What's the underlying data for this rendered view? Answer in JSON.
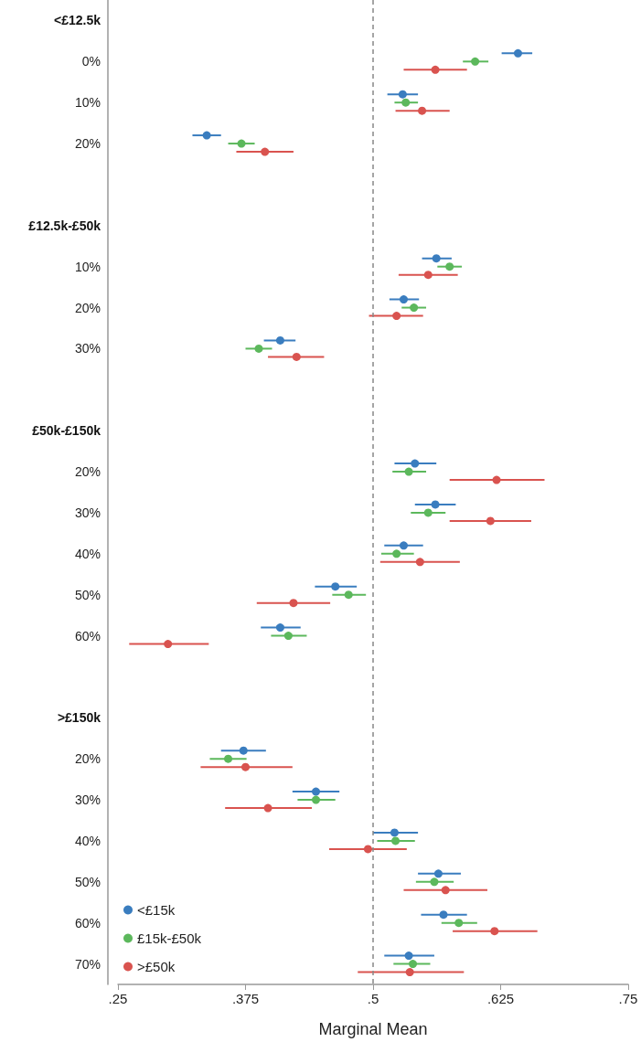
{
  "chart_data": {
    "type": "scatter",
    "orientation": "horizontal",
    "xlabel": "Marginal Mean",
    "categories": [
      "<£12.5k",
      "0%",
      "10%",
      "20%",
      null,
      "£12.5k-£50k",
      "10%",
      "20%",
      "30%",
      null,
      "£50k-£150k",
      "20%",
      "30%",
      "40%",
      "50%",
      "60%",
      null,
      ">£150k",
      "20%",
      "30%",
      "40%",
      "50%",
      "60%",
      "70%"
    ],
    "xlim": [
      0.25,
      0.75
    ],
    "xticks": [
      {
        "value": 0.25,
        "label": ".25"
      },
      {
        "value": 0.375,
        "label": ".375"
      },
      {
        "value": 0.5,
        "label": ".5"
      },
      {
        "value": 0.625,
        "label": ".625"
      },
      {
        "value": 0.75,
        "label": ".75"
      }
    ],
    "grid": false,
    "legend": "bottom left",
    "marker": "circle",
    "ref_lines": [
      {
        "axis": "x",
        "value": 0.5,
        "color": "#888888",
        "line_style": "dashed"
      }
    ],
    "series": [
      {
        "name": "<£15k",
        "color": "#3a7dbf",
        "values": [
          null,
          0.642,
          0.529,
          0.337,
          null,
          null,
          0.562,
          0.53,
          0.409,
          null,
          null,
          0.541,
          0.561,
          0.53,
          0.463,
          0.409,
          null,
          null,
          0.373,
          0.444,
          0.521,
          0.564,
          0.569,
          0.535
        ],
        "errors": [
          null,
          [
            0.626,
            0.656
          ],
          [
            0.514,
            0.544
          ],
          [
            0.323,
            0.351
          ],
          null,
          null,
          [
            0.548,
            0.577
          ],
          [
            0.516,
            0.545
          ],
          [
            0.393,
            0.424
          ],
          null,
          null,
          [
            0.521,
            0.562
          ],
          [
            0.541,
            0.581
          ],
          [
            0.511,
            0.549
          ],
          [
            0.443,
            0.484
          ],
          [
            0.39,
            0.429
          ],
          null,
          null,
          [
            0.351,
            0.395
          ],
          [
            0.421,
            0.467
          ],
          [
            0.5,
            0.544
          ],
          [
            0.544,
            0.586
          ],
          [
            0.547,
            0.592
          ],
          [
            0.511,
            0.56
          ]
        ]
      },
      {
        "name": "£15k-£50k",
        "color": "#5cb85c",
        "values": [
          null,
          0.6,
          0.532,
          0.371,
          null,
          null,
          0.575,
          0.54,
          0.388,
          null,
          null,
          0.535,
          0.554,
          0.523,
          0.476,
          0.417,
          null,
          null,
          0.358,
          0.444,
          0.522,
          0.56,
          0.584,
          0.539
        ],
        "errors": [
          null,
          [
            0.588,
            0.613
          ],
          [
            0.521,
            0.544
          ],
          [
            0.358,
            0.384
          ],
          null,
          null,
          [
            0.563,
            0.587
          ],
          [
            0.528,
            0.552
          ],
          [
            0.375,
            0.401
          ],
          null,
          null,
          [
            0.519,
            0.552
          ],
          [
            0.537,
            0.571
          ],
          [
            0.508,
            0.54
          ],
          [
            0.46,
            0.493
          ],
          [
            0.4,
            0.435
          ],
          null,
          null,
          [
            0.34,
            0.376
          ],
          [
            0.426,
            0.463
          ],
          [
            0.504,
            0.541
          ],
          [
            0.542,
            0.579
          ],
          [
            0.567,
            0.602
          ],
          [
            0.52,
            0.556
          ]
        ]
      },
      {
        "name": ">£50k",
        "color": "#d9534f",
        "values": [
          null,
          0.561,
          0.548,
          0.394,
          null,
          null,
          0.554,
          0.523,
          0.425,
          null,
          null,
          0.621,
          0.615,
          0.546,
          0.422,
          0.299,
          null,
          null,
          0.375,
          0.397,
          0.495,
          0.571,
          0.619,
          0.536
        ],
        "errors": [
          null,
          [
            0.53,
            0.592
          ],
          [
            0.522,
            0.575
          ],
          [
            0.366,
            0.422
          ],
          null,
          null,
          [
            0.525,
            0.583
          ],
          [
            0.496,
            0.549
          ],
          [
            0.397,
            0.452
          ],
          null,
          null,
          [
            0.575,
            0.668
          ],
          [
            0.575,
            0.655
          ],
          [
            0.507,
            0.585
          ],
          [
            0.386,
            0.458
          ],
          [
            0.261,
            0.339
          ],
          null,
          null,
          [
            0.331,
            0.421
          ],
          [
            0.355,
            0.44
          ],
          [
            0.457,
            0.533
          ],
          [
            0.53,
            0.612
          ],
          [
            0.578,
            0.661
          ],
          [
            0.485,
            0.589
          ]
        ]
      }
    ]
  }
}
